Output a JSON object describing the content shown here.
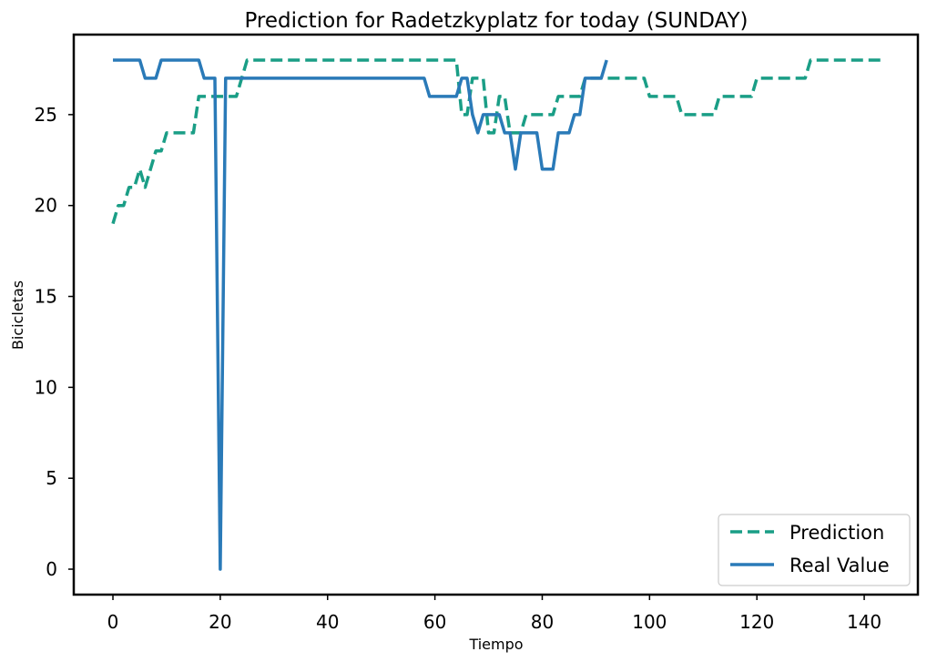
{
  "chart_data": {
    "type": "line",
    "title": "Prediction for Radetzkyplatz for today (SUNDAY)",
    "xlabel": "Tiempo",
    "ylabel": "Bicicletas",
    "xlim": [
      -7.3,
      150
    ],
    "ylim": [
      -1.4,
      29.4
    ],
    "xticks": [
      0,
      20,
      40,
      60,
      80,
      100,
      120,
      140
    ],
    "yticks": [
      0,
      5,
      10,
      15,
      20,
      25
    ],
    "grid": false,
    "legend_position": "lower-right",
    "series": [
      {
        "name": "Prediction",
        "style": "dashed",
        "color": "#1a9e86",
        "x": [
          0,
          1,
          2,
          3,
          4,
          5,
          6,
          7,
          8,
          9,
          10,
          11,
          12,
          13,
          14,
          15,
          16,
          17,
          18,
          19,
          20,
          21,
          22,
          23,
          24,
          25,
          26,
          27,
          28,
          29,
          30,
          31,
          32,
          33,
          34,
          35,
          36,
          37,
          38,
          39,
          40,
          41,
          42,
          43,
          44,
          45,
          46,
          47,
          48,
          49,
          50,
          51,
          52,
          53,
          54,
          55,
          56,
          57,
          58,
          59,
          60,
          61,
          62,
          63,
          64,
          65,
          66,
          67,
          68,
          69,
          70,
          71,
          72,
          73,
          74,
          75,
          76,
          77,
          78,
          79,
          80,
          81,
          82,
          83,
          84,
          85,
          86,
          87,
          88,
          89,
          90,
          91,
          92,
          93,
          94,
          95,
          96,
          97,
          98,
          99,
          100,
          101,
          102,
          103,
          104,
          105,
          106,
          107,
          108,
          109,
          110,
          111,
          112,
          113,
          114,
          115,
          116,
          117,
          118,
          119,
          120,
          121,
          122,
          123,
          124,
          125,
          126,
          127,
          128,
          129,
          130,
          131,
          132,
          133,
          134,
          135,
          136,
          137,
          138,
          139,
          140,
          141,
          142,
          143
        ],
        "y": [
          19,
          20,
          20,
          21,
          21,
          22,
          21,
          22,
          23,
          23,
          24,
          24,
          24,
          24,
          24,
          24,
          26,
          26,
          26,
          26,
          26,
          26,
          26,
          26,
          27,
          28,
          28,
          28,
          28,
          28,
          28,
          28,
          28,
          28,
          28,
          28,
          28,
          28,
          28,
          28,
          28,
          28,
          28,
          28,
          28,
          28,
          28,
          28,
          28,
          28,
          28,
          28,
          28,
          28,
          28,
          28,
          28,
          28,
          28,
          28,
          28,
          28,
          28,
          28,
          28,
          25,
          25,
          27,
          27,
          27,
          24,
          24,
          26,
          26,
          24,
          24,
          24,
          25,
          25,
          25,
          25,
          25,
          25,
          26,
          26,
          26,
          26,
          26,
          27,
          27,
          27,
          27,
          27,
          27,
          27,
          27,
          27,
          27,
          27,
          27,
          26,
          26,
          26,
          26,
          26,
          26,
          25,
          25,
          25,
          25,
          25,
          25,
          25,
          26,
          26,
          26,
          26,
          26,
          26,
          26,
          27,
          27,
          27,
          27,
          27,
          27,
          27,
          27,
          27,
          27,
          28,
          28,
          28,
          28,
          28,
          28,
          28,
          28,
          28,
          28,
          28,
          28,
          28,
          28
        ]
      },
      {
        "name": "Real Value",
        "style": "solid",
        "color": "#2a7ab8",
        "x": [
          0,
          1,
          2,
          3,
          4,
          5,
          6,
          7,
          8,
          9,
          10,
          11,
          12,
          13,
          14,
          15,
          16,
          17,
          18,
          19,
          20,
          21,
          22,
          23,
          24,
          25,
          26,
          27,
          28,
          29,
          30,
          31,
          32,
          33,
          34,
          35,
          36,
          37,
          38,
          39,
          40,
          41,
          42,
          43,
          44,
          45,
          46,
          47,
          48,
          49,
          50,
          51,
          52,
          53,
          54,
          55,
          56,
          57,
          58,
          59,
          60,
          61,
          62,
          63,
          64,
          65,
          66,
          67,
          68,
          69,
          70,
          71,
          72,
          73,
          74,
          75,
          76,
          77,
          78,
          79,
          80,
          81,
          82,
          83,
          84,
          85,
          86,
          87,
          88,
          89,
          90,
          91,
          92
        ],
        "y": [
          28,
          28,
          28,
          28,
          28,
          28,
          27,
          27,
          27,
          28,
          28,
          28,
          28,
          28,
          28,
          28,
          28,
          27,
          27,
          27,
          0,
          27,
          27,
          27,
          27,
          27,
          27,
          27,
          27,
          27,
          27,
          27,
          27,
          27,
          27,
          27,
          27,
          27,
          27,
          27,
          27,
          27,
          27,
          27,
          27,
          27,
          27,
          27,
          27,
          27,
          27,
          27,
          27,
          27,
          27,
          27,
          27,
          27,
          27,
          26,
          26,
          26,
          26,
          26,
          26,
          27,
          27,
          25,
          24,
          25,
          25,
          25,
          25,
          24,
          24,
          22,
          24,
          24,
          24,
          24,
          22,
          22,
          22,
          24,
          24,
          24,
          25,
          25,
          27,
          27,
          27,
          27,
          28
        ]
      }
    ]
  }
}
